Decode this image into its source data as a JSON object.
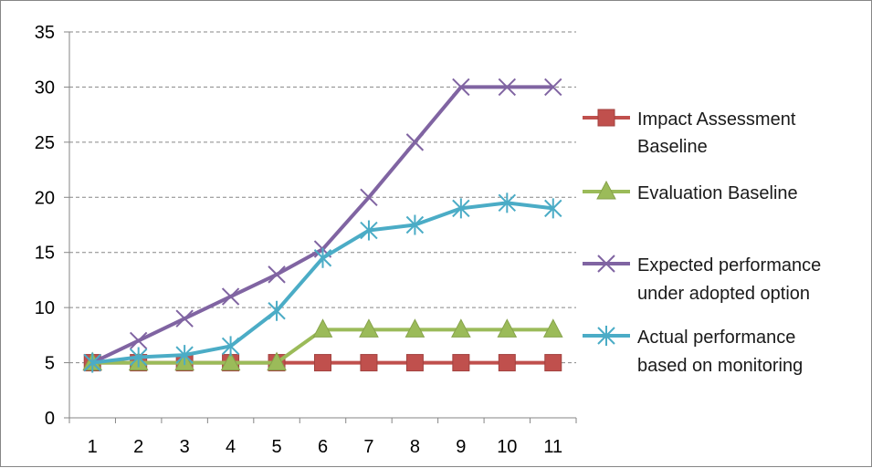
{
  "chart_data": {
    "type": "line",
    "title": "",
    "xlabel": "",
    "ylabel": "",
    "x": [
      1,
      2,
      3,
      4,
      5,
      6,
      7,
      8,
      9,
      10,
      11
    ],
    "ylim": [
      0,
      35
    ],
    "yticks": [
      0,
      5,
      10,
      15,
      20,
      25,
      30,
      35
    ],
    "grid": true,
    "legend": "right",
    "series": [
      {
        "name": "Impact Assessment Baseline",
        "legend_lines": [
          "Impact Assessment",
          "Baseline"
        ],
        "color": "#C0504D",
        "marker": "square",
        "values": [
          5,
          5,
          5,
          5,
          5,
          5,
          5,
          5,
          5,
          5,
          5
        ]
      },
      {
        "name": "Evaluation Baseline",
        "legend_lines": [
          "Evaluation Baseline"
        ],
        "color": "#9BBB59",
        "marker": "triangle",
        "values": [
          5,
          5,
          5,
          5,
          5,
          8,
          8,
          8,
          8,
          8,
          8
        ]
      },
      {
        "name": "Expected performance under adopted option",
        "legend_lines": [
          "Expected performance",
          "under adopted option"
        ],
        "color": "#8064A2",
        "marker": "x",
        "values": [
          5,
          7,
          9,
          11,
          13,
          15.3,
          20,
          25,
          30,
          30,
          30
        ]
      },
      {
        "name": "Actual performance based on monitoring",
        "legend_lines": [
          "Actual performance",
          "based on monitoring"
        ],
        "color": "#4BACC6",
        "marker": "star",
        "values": [
          5,
          5.5,
          5.7,
          6.5,
          9.7,
          14.5,
          17,
          17.5,
          19,
          19.5,
          19
        ]
      }
    ]
  }
}
